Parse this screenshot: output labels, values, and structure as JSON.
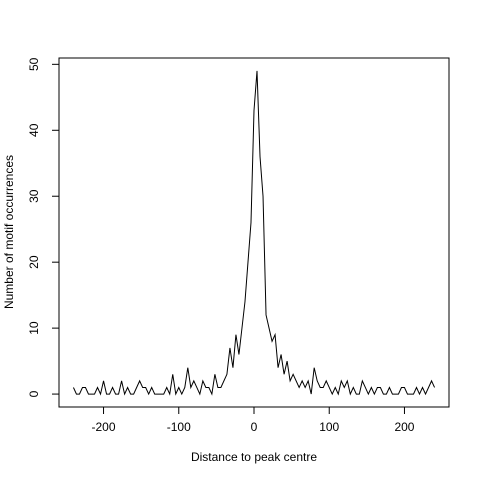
{
  "chart_data": {
    "type": "line",
    "xlabel": "Distance to peak centre",
    "ylabel": "Number of motif occurrences",
    "x": [
      -240,
      -236,
      -232,
      -228,
      -224,
      -220,
      -216,
      -212,
      -208,
      -204,
      -200,
      -196,
      -192,
      -188,
      -184,
      -180,
      -176,
      -172,
      -168,
      -164,
      -160,
      -156,
      -152,
      -148,
      -144,
      -140,
      -136,
      -132,
      -128,
      -124,
      -120,
      -116,
      -112,
      -108,
      -104,
      -100,
      -96,
      -92,
      -88,
      -84,
      -80,
      -76,
      -72,
      -68,
      -64,
      -60,
      -56,
      -52,
      -48,
      -44,
      -40,
      -36,
      -32,
      -28,
      -24,
      -20,
      -16,
      -12,
      -8,
      -4,
      0,
      4,
      8,
      12,
      16,
      20,
      24,
      28,
      32,
      36,
      40,
      44,
      48,
      52,
      56,
      60,
      64,
      68,
      72,
      76,
      80,
      84,
      88,
      92,
      96,
      100,
      104,
      108,
      112,
      116,
      120,
      124,
      128,
      132,
      136,
      140,
      144,
      148,
      152,
      156,
      160,
      164,
      168,
      172,
      176,
      180,
      184,
      188,
      192,
      196,
      200,
      204,
      208,
      212,
      216,
      220,
      224,
      228,
      232,
      236,
      240
    ],
    "values": [
      1,
      0,
      0,
      1,
      1,
      0,
      0,
      0,
      1,
      0,
      2,
      0,
      0,
      1,
      0,
      0,
      2,
      0,
      1,
      0,
      0,
      1,
      2,
      1,
      1,
      0,
      1,
      0,
      0,
      0,
      0,
      1,
      0,
      3,
      0,
      1,
      0,
      1,
      4,
      1,
      2,
      1,
      0,
      2,
      1,
      1,
      0,
      3,
      1,
      1,
      2,
      3,
      7,
      4,
      9,
      6,
      10,
      14,
      20,
      26,
      43,
      49,
      36,
      30,
      12,
      10,
      8,
      9,
      4,
      6,
      3,
      5,
      2,
      3,
      2,
      1,
      2,
      1,
      2,
      0,
      4,
      2,
      1,
      1,
      2,
      1,
      0,
      1,
      0,
      2,
      1,
      2,
      0,
      1,
      0,
      0,
      2,
      1,
      0,
      1,
      0,
      1,
      1,
      0,
      0,
      1,
      0,
      0,
      0,
      1,
      1,
      0,
      0,
      0,
      1,
      0,
      1,
      0,
      1,
      2,
      1
    ],
    "color": "#000000",
    "xlim": [
      -259.2,
      259.2
    ],
    "ylim": [
      -1.96,
      50.96
    ],
    "xticks": [
      -200,
      -100,
      0,
      100,
      200
    ],
    "yticks": [
      0,
      10,
      20,
      30,
      40,
      50
    ]
  }
}
